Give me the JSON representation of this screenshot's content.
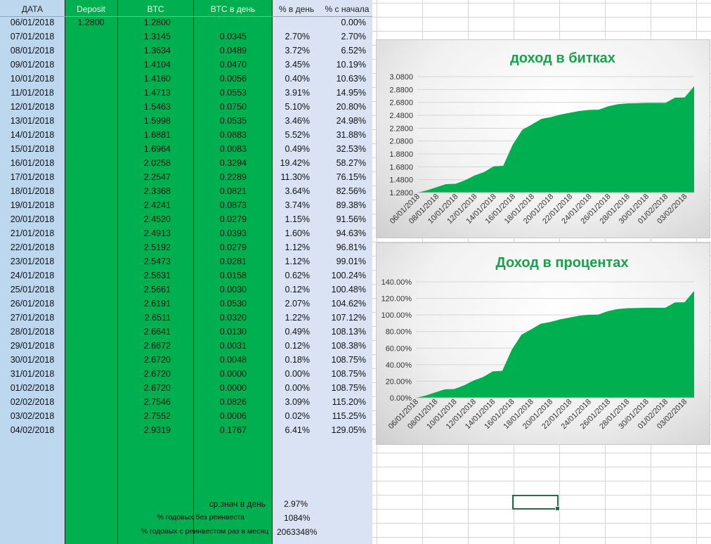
{
  "table": {
    "headers": {
      "date": "ДАТА",
      "deposit": "Deposit",
      "btc": "BTC",
      "btc_day": "BTC в день",
      "pct_day": "% в день",
      "pct_start": "% с начала"
    },
    "rows": [
      {
        "date": "06/01/2018",
        "deposit": "1.2800",
        "btc": "1.2800",
        "btc_day": "",
        "pct_day": "",
        "pct_start": "0.00%"
      },
      {
        "date": "07/01/2018",
        "deposit": "",
        "btc": "1.3145",
        "btc_day": "0.0345",
        "pct_day": "2.70%",
        "pct_start": "2.70%"
      },
      {
        "date": "08/01/2018",
        "deposit": "",
        "btc": "1.3634",
        "btc_day": "0.0489",
        "pct_day": "3.72%",
        "pct_start": "6.52%"
      },
      {
        "date": "09/01/2018",
        "deposit": "",
        "btc": "1.4104",
        "btc_day": "0.0470",
        "pct_day": "3.45%",
        "pct_start": "10.19%"
      },
      {
        "date": "10/01/2018",
        "deposit": "",
        "btc": "1.4160",
        "btc_day": "0.0056",
        "pct_day": "0.40%",
        "pct_start": "10.63%"
      },
      {
        "date": "11/01/2018",
        "deposit": "",
        "btc": "1.4713",
        "btc_day": "0.0553",
        "pct_day": "3.91%",
        "pct_start": "14.95%"
      },
      {
        "date": "12/01/2018",
        "deposit": "",
        "btc": "1.5463",
        "btc_day": "0.0750",
        "pct_day": "5.10%",
        "pct_start": "20.80%"
      },
      {
        "date": "13/01/2018",
        "deposit": "",
        "btc": "1.5998",
        "btc_day": "0.0535",
        "pct_day": "3.46%",
        "pct_start": "24.98%"
      },
      {
        "date": "14/01/2018",
        "deposit": "",
        "btc": "1.6881",
        "btc_day": "0.0883",
        "pct_day": "5.52%",
        "pct_start": "31.88%"
      },
      {
        "date": "15/01/2018",
        "deposit": "",
        "btc": "1.6964",
        "btc_day": "0.0083",
        "pct_day": "0.49%",
        "pct_start": "32.53%"
      },
      {
        "date": "16/01/2018",
        "deposit": "",
        "btc": "2.0258",
        "btc_day": "0.3294",
        "pct_day": "19.42%",
        "pct_start": "58.27%"
      },
      {
        "date": "17/01/2018",
        "deposit": "",
        "btc": "2.2547",
        "btc_day": "0.2289",
        "pct_day": "11.30%",
        "pct_start": "76.15%"
      },
      {
        "date": "18/01/2018",
        "deposit": "",
        "btc": "2.3368",
        "btc_day": "0.0821",
        "pct_day": "3.64%",
        "pct_start": "82.56%"
      },
      {
        "date": "19/01/2018",
        "deposit": "",
        "btc": "2.4241",
        "btc_day": "0.0873",
        "pct_day": "3.74%",
        "pct_start": "89.38%"
      },
      {
        "date": "20/01/2018",
        "deposit": "",
        "btc": "2.4520",
        "btc_day": "0.0279",
        "pct_day": "1.15%",
        "pct_start": "91.56%"
      },
      {
        "date": "21/01/2018",
        "deposit": "",
        "btc": "2.4913",
        "btc_day": "0.0393",
        "pct_day": "1.60%",
        "pct_start": "94.63%"
      },
      {
        "date": "22/01/2018",
        "deposit": "",
        "btc": "2.5192",
        "btc_day": "0.0279",
        "pct_day": "1.12%",
        "pct_start": "96.81%"
      },
      {
        "date": "23/01/2018",
        "deposit": "",
        "btc": "2.5473",
        "btc_day": "0.0281",
        "pct_day": "1.12%",
        "pct_start": "99.01%"
      },
      {
        "date": "24/01/2018",
        "deposit": "",
        "btc": "2.5631",
        "btc_day": "0.0158",
        "pct_day": "0.62%",
        "pct_start": "100.24%"
      },
      {
        "date": "25/01/2018",
        "deposit": "",
        "btc": "2.5661",
        "btc_day": "0.0030",
        "pct_day": "0.12%",
        "pct_start": "100.48%"
      },
      {
        "date": "26/01/2018",
        "deposit": "",
        "btc": "2.6191",
        "btc_day": "0.0530",
        "pct_day": "2.07%",
        "pct_start": "104.62%"
      },
      {
        "date": "27/01/2018",
        "deposit": "",
        "btc": "2.6511",
        "btc_day": "0.0320",
        "pct_day": "1.22%",
        "pct_start": "107.12%"
      },
      {
        "date": "28/01/2018",
        "deposit": "",
        "btc": "2.6641",
        "btc_day": "0.0130",
        "pct_day": "0.49%",
        "pct_start": "108.13%"
      },
      {
        "date": "29/01/2018",
        "deposit": "",
        "btc": "2.6672",
        "btc_day": "0.0031",
        "pct_day": "0.12%",
        "pct_start": "108.38%"
      },
      {
        "date": "30/01/2018",
        "deposit": "",
        "btc": "2.6720",
        "btc_day": "0.0048",
        "pct_day": "0.18%",
        "pct_start": "108.75%"
      },
      {
        "date": "31/01/2018",
        "deposit": "",
        "btc": "2.6720",
        "btc_day": "0.0000",
        "pct_day": "0.00%",
        "pct_start": "108.75%"
      },
      {
        "date": "01/02/2018",
        "deposit": "",
        "btc": "2.6720",
        "btc_day": "0.0000",
        "pct_day": "0.00%",
        "pct_start": "108.75%"
      },
      {
        "date": "02/02/2018",
        "deposit": "",
        "btc": "2.7546",
        "btc_day": "0.0826",
        "pct_day": "3.09%",
        "pct_start": "115.20%"
      },
      {
        "date": "03/02/2018",
        "deposit": "",
        "btc": "2.7552",
        "btc_day": "0.0006",
        "pct_day": "0.02%",
        "pct_start": "115.25%"
      },
      {
        "date": "04/02/2018",
        "deposit": "",
        "btc": "2.9319",
        "btc_day": "0.1767",
        "pct_day": "6.41%",
        "pct_start": "129.05%"
      }
    ]
  },
  "summary": {
    "avg_label": "ср.знач в день",
    "avg_value": "2.97%",
    "annual_label": "% годовых без реинвеста",
    "annual_value": "1084%",
    "annual_reinvest_label": "% годовых с реинвестом раз в месяц",
    "annual_reinvest_value": "2063348%"
  },
  "colors": {
    "green": "#00b050",
    "date_column": "#bdd7ee",
    "pct_columns": "#dae3f3",
    "chart_title": "#16a34a",
    "area_fill": "#00b050"
  },
  "chart_data": [
    {
      "type": "area",
      "title": "доход в битках",
      "x": [
        "06/01/2018",
        "07/01/2018",
        "08/01/2018",
        "09/01/2018",
        "10/01/2018",
        "11/01/2018",
        "12/01/2018",
        "13/01/2018",
        "14/01/2018",
        "15/01/2018",
        "16/01/2018",
        "17/01/2018",
        "18/01/2018",
        "19/01/2018",
        "20/01/2018",
        "21/01/2018",
        "22/01/2018",
        "23/01/2018",
        "24/01/2018",
        "25/01/2018",
        "26/01/2018",
        "27/01/2018",
        "28/01/2018",
        "29/01/2018",
        "30/01/2018",
        "31/01/2018",
        "01/02/2018",
        "02/02/2018",
        "03/02/2018",
        "04/02/2018"
      ],
      "values": [
        1.28,
        1.3145,
        1.3634,
        1.4104,
        1.416,
        1.4713,
        1.5463,
        1.5998,
        1.6881,
        1.6964,
        2.0258,
        2.2547,
        2.3368,
        2.4241,
        2.452,
        2.4913,
        2.5192,
        2.5473,
        2.5631,
        2.5661,
        2.6191,
        2.6511,
        2.6641,
        2.6672,
        2.672,
        2.672,
        2.672,
        2.7546,
        2.7552,
        2.9319
      ],
      "ylim": [
        1.28,
        3.08
      ],
      "yticks": [
        "1.2800",
        "1.4800",
        "1.6800",
        "1.8800",
        "2.0800",
        "2.2800",
        "2.4800",
        "2.6800",
        "2.8800",
        "3.0800"
      ],
      "xtick_labels": [
        "06/01/2018",
        "08/01/2018",
        "10/01/2018",
        "12/01/2018",
        "14/01/2018",
        "16/01/2018",
        "18/01/2018",
        "20/01/2018",
        "22/01/2018",
        "24/01/2018",
        "26/01/2018",
        "28/01/2018",
        "30/01/2018",
        "01/02/2018",
        "03/02/2018"
      ],
      "grid": true,
      "legend": "none"
    },
    {
      "type": "area",
      "title": "Доход в процентах",
      "x": [
        "06/01/2018",
        "07/01/2018",
        "08/01/2018",
        "09/01/2018",
        "10/01/2018",
        "11/01/2018",
        "12/01/2018",
        "13/01/2018",
        "14/01/2018",
        "15/01/2018",
        "16/01/2018",
        "17/01/2018",
        "18/01/2018",
        "19/01/2018",
        "20/01/2018",
        "21/01/2018",
        "22/01/2018",
        "23/01/2018",
        "24/01/2018",
        "25/01/2018",
        "26/01/2018",
        "27/01/2018",
        "28/01/2018",
        "29/01/2018",
        "30/01/2018",
        "31/01/2018",
        "01/02/2018",
        "02/02/2018",
        "03/02/2018",
        "04/02/2018"
      ],
      "values": [
        0,
        2.7,
        6.52,
        10.19,
        10.63,
        14.95,
        20.8,
        24.98,
        31.88,
        32.53,
        58.27,
        76.15,
        82.56,
        89.38,
        91.56,
        94.63,
        96.81,
        99.01,
        100.24,
        100.48,
        104.62,
        107.12,
        108.13,
        108.38,
        108.75,
        108.75,
        108.75,
        115.2,
        115.25,
        129.05
      ],
      "ylim": [
        0,
        140
      ],
      "yticks": [
        "0.00%",
        "20.00%",
        "40.00%",
        "60.00%",
        "80.00%",
        "100.00%",
        "120.00%",
        "140.00%"
      ],
      "xtick_labels": [
        "06/01/2018",
        "08/01/2018",
        "10/01/2018",
        "12/01/2018",
        "14/01/2018",
        "16/01/2018",
        "18/01/2018",
        "20/01/2018",
        "22/01/2018",
        "24/01/2018",
        "26/01/2018",
        "28/01/2018",
        "30/01/2018",
        "01/02/2018",
        "03/02/2018"
      ],
      "grid": true,
      "legend": "none"
    }
  ]
}
